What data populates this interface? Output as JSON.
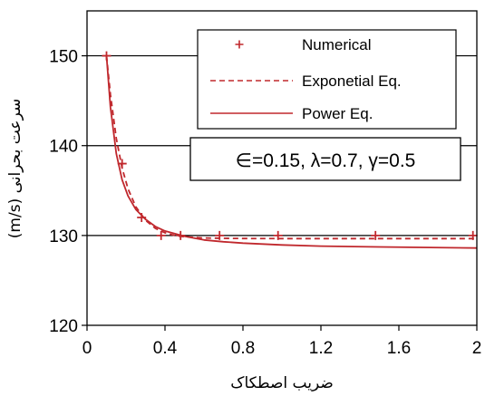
{
  "chart_data": {
    "type": "line",
    "title": "",
    "xlabel": "ضریب اصطکاک",
    "ylabel": "سرعت بحرانی (m/s)",
    "xlim": [
      0,
      2
    ],
    "ylim": [
      120,
      155
    ],
    "x_ticks": [
      0,
      0.4,
      0.8,
      1.2,
      1.6,
      2
    ],
    "x_tick_labels": [
      "0",
      "0.4",
      "0.8",
      "1.2",
      "1.6",
      "2"
    ],
    "y_ticks": [
      120,
      130,
      140,
      150
    ],
    "y_tick_labels": [
      "120",
      "130",
      "140",
      "150"
    ],
    "grid": "horizontal major gridlines",
    "legend_position": "top-right",
    "series": [
      {
        "name": "Numerical",
        "style": "markers",
        "marker": "plus",
        "color": "#c0282d",
        "x": [
          0.1,
          0.18,
          0.28,
          0.38,
          0.48,
          0.68,
          0.98,
          1.48,
          1.98
        ],
        "y": [
          150,
          138,
          132,
          130,
          130,
          130,
          130,
          130,
          130
        ]
      },
      {
        "name": "Exponetial Eq.",
        "style": "dashed",
        "color": "#c0282d",
        "x": [
          0.1,
          0.12,
          0.15,
          0.18,
          0.21,
          0.25,
          0.3,
          0.35,
          0.4,
          0.45,
          0.5,
          0.6,
          0.7,
          0.8,
          1.0,
          1.2,
          1.5,
          2.0
        ],
        "y": [
          150,
          145.7,
          140.8,
          137.5,
          135.2,
          133.2,
          131.7,
          130.8,
          130.3,
          130.0,
          129.85,
          129.72,
          129.68,
          129.66,
          129.65,
          129.65,
          129.65,
          129.65
        ]
      },
      {
        "name": "Power Eq.",
        "style": "solid",
        "color": "#c0282d",
        "x": [
          0.1,
          0.12,
          0.15,
          0.18,
          0.21,
          0.25,
          0.3,
          0.35,
          0.4,
          0.5,
          0.6,
          0.7,
          0.8,
          1.0,
          1.2,
          1.5,
          2.0
        ],
        "y": [
          150,
          144.3,
          139.1,
          136.2,
          134.4,
          132.9,
          131.8,
          131.0,
          130.5,
          129.9,
          129.5,
          129.3,
          129.15,
          128.95,
          128.82,
          128.72,
          128.6
        ]
      }
    ],
    "annotation": "∈=0.15, λ=0.7, γ=0.5"
  },
  "colors": {
    "series": "#c0282d",
    "axes": "#000000",
    "grid": "#000000"
  }
}
